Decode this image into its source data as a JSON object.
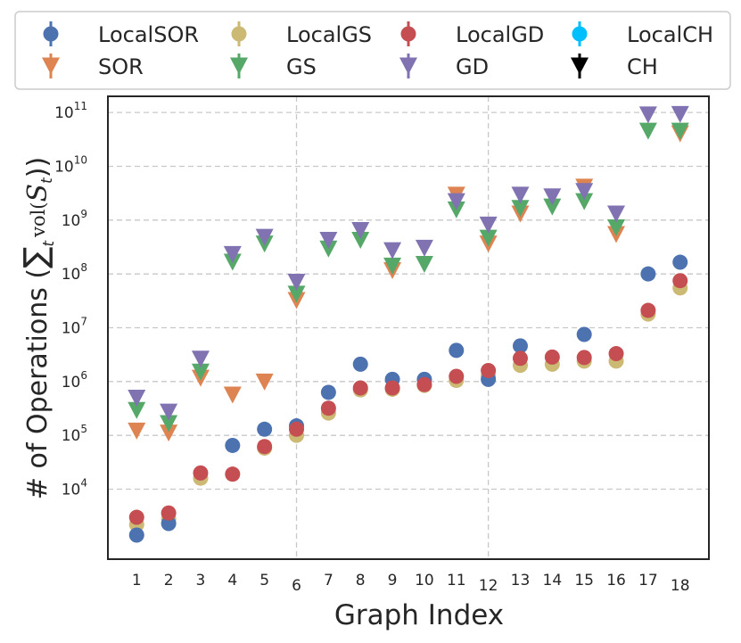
{
  "chart_data": {
    "type": "scatter",
    "xlabel": "Graph Index",
    "ylabel": "# of Operations (∑t vol(St))",
    "ylabel_parts": {
      "prefix": "# of Operations (",
      "sum": "∑",
      "sub": "t",
      "func": "vol(",
      "set": "S",
      "set_sub": "t",
      "suffix": "))"
    },
    "yscale": "log",
    "ylim": [
      500,
      200000000000
    ],
    "xlim": [
      0.1,
      18.9
    ],
    "grid": "dashed at x=6, x=12 and each y decade",
    "legend_position": "top (outside plot), 4 columns",
    "categories": [
      "1",
      "2",
      "3",
      "4",
      "5",
      "6",
      "7",
      "8",
      "9",
      "10",
      "11",
      "12",
      "13",
      "14",
      "15",
      "16",
      "17",
      "18"
    ],
    "x": [
      1,
      2,
      3,
      4,
      5,
      6,
      7,
      8,
      9,
      10,
      11,
      12,
      13,
      14,
      15,
      16,
      17,
      18
    ],
    "ytick_labels": [
      {
        "value": 10000,
        "base": "10",
        "exp": "4"
      },
      {
        "value": 100000,
        "base": "10",
        "exp": "5"
      },
      {
        "value": 1000000,
        "base": "10",
        "exp": "6"
      },
      {
        "value": 10000000,
        "base": "10",
        "exp": "7"
      },
      {
        "value": 100000000,
        "base": "10",
        "exp": "8"
      },
      {
        "value": 1000000000,
        "base": "10",
        "exp": "9"
      },
      {
        "value": 10000000000,
        "base": "10",
        "exp": "10"
      },
      {
        "value": 100000000000,
        "base": "10",
        "exp": "11"
      }
    ],
    "series": [
      {
        "name": "LocalGS",
        "marker": "circle",
        "color": "#ccb974",
        "values": [
          2200,
          2800,
          16000,
          null,
          58000,
          100000,
          260000,
          700000,
          720000,
          850000,
          1050000,
          1300000,
          2000000,
          2100000,
          2400000,
          2400000,
          18000000,
          55000000
        ]
      },
      {
        "name": "LocalSOR",
        "marker": "circle",
        "color": "#4c72b0",
        "values": [
          1400,
          2300,
          null,
          65000,
          130000,
          150000,
          630000,
          2100000,
          1100000,
          1100000,
          3800000,
          1100000,
          4600000,
          null,
          7500000,
          null,
          100000000,
          165000000
        ]
      },
      {
        "name": "LocalGD",
        "marker": "circle",
        "color": "#c44e52",
        "values": [
          3000,
          3600,
          20000,
          19000,
          62000,
          130000,
          320000,
          760000,
          760000,
          880000,
          1250000,
          1600000,
          2700000,
          2850000,
          2800000,
          3300000,
          21000000,
          75000000
        ]
      },
      {
        "name": "LocalCH",
        "marker": "circle",
        "color": "#00bfff",
        "values": [
          null,
          null,
          null,
          null,
          null,
          null,
          null,
          null,
          null,
          null,
          null,
          null,
          null,
          null,
          null,
          null,
          null,
          null
        ]
      },
      {
        "name": "SOR",
        "marker": "triangle-down",
        "color": "#dd8452",
        "values": [
          120000,
          110000,
          1150000,
          560000,
          980000,
          32000000,
          null,
          null,
          115000000,
          null,
          2900000000,
          360000000,
          1300000000,
          null,
          4100000000,
          540000000,
          null,
          40000000000
        ]
      },
      {
        "name": "GS",
        "marker": "triangle-down",
        "color": "#55a868",
        "values": [
          290000,
          165000,
          1500000,
          165000000,
          360000000,
          42000000,
          290000000,
          420000000,
          140000000,
          150000000,
          1550000000,
          460000000,
          1650000000,
          1750000000,
          2200000000,
          720000000,
          45000000000,
          45000000000
        ]
      },
      {
        "name": "GD",
        "marker": "triangle-down",
        "color": "#8172b2",
        "values": [
          490000,
          270000,
          2600000,
          230000000,
          480000000,
          70000000,
          420000000,
          640000000,
          270000000,
          300000000,
          2200000000,
          810000000,
          2900000000,
          2700000000,
          3400000000,
          1300000000,
          90000000000,
          92000000000
        ]
      },
      {
        "name": "CH",
        "marker": "triangle-down",
        "color": "#000000",
        "values": [
          null,
          null,
          null,
          null,
          null,
          null,
          null,
          null,
          null,
          null,
          null,
          null,
          null,
          null,
          null,
          null,
          null,
          null
        ]
      }
    ]
  },
  "legend": [
    {
      "name": "LocalSOR",
      "marker": "circle",
      "color": "#4c72b0"
    },
    {
      "name": "LocalGS",
      "marker": "circle",
      "color": "#ccb974"
    },
    {
      "name": "LocalGD",
      "marker": "circle",
      "color": "#c44e52"
    },
    {
      "name": "LocalCH",
      "marker": "circle",
      "color": "#00bfff"
    },
    {
      "name": "SOR",
      "marker": "triangle-down",
      "color": "#dd8452"
    },
    {
      "name": "GS",
      "marker": "triangle-down",
      "color": "#55a868"
    },
    {
      "name": "GD",
      "marker": "triangle-down",
      "color": "#8172b2"
    },
    {
      "name": "CH",
      "marker": "triangle-down",
      "color": "#000000"
    }
  ]
}
